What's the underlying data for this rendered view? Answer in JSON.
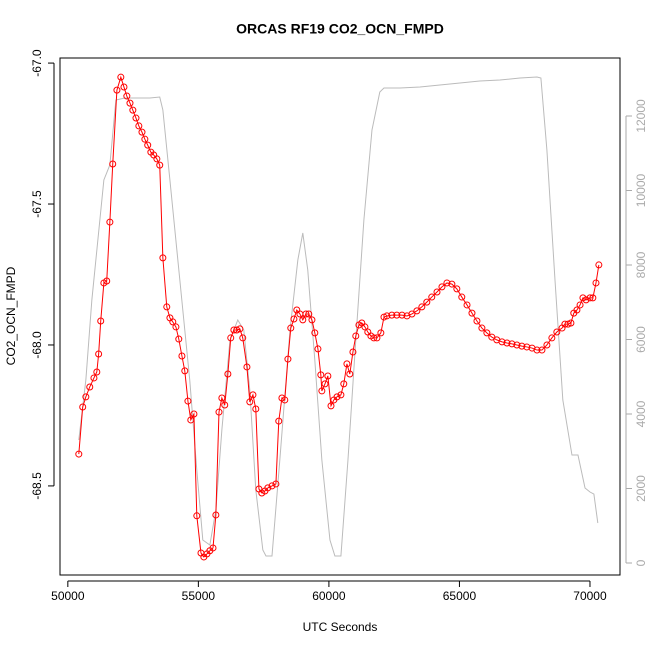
{
  "chart_data": {
    "type": "line",
    "title": "ORCAS RF19 CO2_OCN_FMPD",
    "xlabel": "UTC Seconds",
    "ylabel": "CO2_OCN_FMPD",
    "xlim": [
      49700,
      71150
    ],
    "xticks": [
      50000,
      55000,
      60000,
      65000,
      70000
    ],
    "ylim": [
      -68.816,
      -66.982
    ],
    "yticks": [
      {
        "value": -67,
        "label": "-67.0"
      },
      -67.5,
      {
        "value": -68,
        "label": "-68.0"
      },
      -68.5
    ],
    "y2lim": [
      -322,
      13557
    ],
    "y2ticks": [
      0,
      2000,
      4000,
      6000,
      8000,
      10000,
      12000
    ],
    "series": [
      {
        "color": "#bbbbbb",
        "marker": "none",
        "axis": "y2",
        "x": [
          50420,
          50690,
          50920,
          51150,
          51380,
          51610,
          51840,
          52180,
          53140,
          53520,
          53640,
          53910,
          54290,
          54670,
          54940,
          55170,
          55440,
          55670,
          55900,
          56210,
          56510,
          56740,
          56970,
          57200,
          57470,
          57590,
          57820,
          58120,
          58510,
          58810,
          59000,
          59190,
          59460,
          59730,
          60040,
          60230,
          60460,
          60730,
          61030,
          61340,
          61650,
          61950,
          62110,
          62720,
          63490,
          64250,
          65020,
          65780,
          66550,
          67320,
          67970,
          68120,
          68350,
          68660,
          68960,
          69310,
          69540,
          69810,
          70000,
          70150,
          70300
        ],
        "values": [
          3302,
          4913,
          7060,
          8671,
          10282,
          10685,
          12430,
          12483,
          12483,
          12510,
          12161,
          10282,
          7597,
          4913,
          2497,
          617,
          483,
          1423,
          3571,
          5987,
          6524,
          6255,
          4644,
          1960,
          349,
          188,
          188,
          2765,
          6255,
          8134,
          8859,
          7866,
          5450,
          2765,
          617,
          188,
          188,
          2765,
          5987,
          9208,
          11624,
          12644,
          12752,
          12752,
          12779,
          12832,
          12886,
          12940,
          12966,
          13020,
          13047,
          13020,
          11087,
          7597,
          4376,
          2899,
          2899,
          2013,
          1906,
          1852,
          1074
        ]
      },
      {
        "color": "#ff0000",
        "marker": "circle",
        "axis": "y",
        "x": [
          50420,
          50570,
          50690,
          50840,
          51000,
          51110,
          51180,
          51260,
          51380,
          51490,
          51610,
          51720,
          51880,
          52030,
          52150,
          52260,
          52380,
          52490,
          52610,
          52720,
          52840,
          52950,
          53060,
          53180,
          53290,
          53410,
          53520,
          53640,
          53790,
          53910,
          54020,
          54140,
          54250,
          54370,
          54480,
          54600,
          54710,
          54830,
          54940,
          55100,
          55210,
          55330,
          55440,
          55560,
          55670,
          55790,
          55900,
          56010,
          56130,
          56240,
          56360,
          56470,
          56590,
          56700,
          56860,
          56970,
          57090,
          57200,
          57320,
          57430,
          57550,
          57660,
          57820,
          57970,
          58080,
          58200,
          58310,
          58430,
          58540,
          58660,
          58770,
          58890,
          59000,
          59120,
          59230,
          59350,
          59460,
          59580,
          59690,
          59730,
          59850,
          59960,
          60080,
          60190,
          60310,
          60460,
          60570,
          60690,
          60800,
          60920,
          61030,
          61150,
          61260,
          61380,
          61490,
          61610,
          61720,
          61840,
          61990,
          62110,
          62220,
          62410,
          62600,
          62800,
          62990,
          63180,
          63370,
          63560,
          63750,
          63940,
          64140,
          64330,
          64520,
          64710,
          64900,
          65090,
          65290,
          65480,
          65670,
          65860,
          66050,
          66240,
          66430,
          66630,
          66820,
          67010,
          67200,
          67390,
          67580,
          67780,
          67970,
          68160,
          68350,
          68540,
          68730,
          68930,
          69040,
          69160,
          69270,
          69380,
          69500,
          69620,
          69730,
          69850,
          70000,
          70110,
          70230,
          70340
        ],
        "values": [
          -68.387,
          -68.22,
          -68.184,
          -68.149,
          -68.117,
          -68.096,
          -68.032,
          -67.915,
          -67.78,
          -67.773,
          -67.564,
          -67.358,
          -67.096,
          -67.05,
          -67.085,
          -67.117,
          -67.142,
          -67.167,
          -67.195,
          -67.223,
          -67.245,
          -67.27,
          -67.291,
          -67.316,
          -67.326,
          -67.34,
          -67.362,
          -67.691,
          -67.865,
          -67.904,
          -67.918,
          -67.936,
          -67.979,
          -68.039,
          -68.092,
          -68.199,
          -68.266,
          -68.245,
          -68.606,
          -68.738,
          -68.752,
          -68.741,
          -68.73,
          -68.72,
          -68.603,
          -68.238,
          -68.188,
          -68.213,
          -68.103,
          -67.975,
          -67.947,
          -67.947,
          -67.943,
          -67.975,
          -68.078,
          -68.202,
          -68.177,
          -68.227,
          -68.511,
          -68.525,
          -68.518,
          -68.507,
          -68.5,
          -68.493,
          -68.27,
          -68.188,
          -68.195,
          -68.05,
          -67.94,
          -67.908,
          -67.876,
          -67.89,
          -67.911,
          -67.89,
          -67.89,
          -67.911,
          -67.957,
          -68.014,
          -68.106,
          -68.163,
          -68.138,
          -68.11,
          -68.216,
          -68.195,
          -68.184,
          -68.177,
          -68.138,
          -68.067,
          -68.103,
          -68.025,
          -67.968,
          -67.929,
          -67.922,
          -67.936,
          -67.954,
          -67.968,
          -67.975,
          -67.975,
          -67.957,
          -67.901,
          -67.897,
          -67.894,
          -67.894,
          -67.894,
          -67.897,
          -67.89,
          -67.879,
          -67.865,
          -67.848,
          -67.83,
          -67.812,
          -67.794,
          -67.78,
          -67.784,
          -67.801,
          -67.83,
          -67.858,
          -67.887,
          -67.915,
          -67.94,
          -67.957,
          -67.972,
          -67.982,
          -67.989,
          -67.993,
          -67.996,
          -68.0,
          -68.004,
          -68.007,
          -68.011,
          -68.018,
          -68.018,
          -68.0,
          -67.975,
          -67.954,
          -67.94,
          -67.926,
          -67.926,
          -67.922,
          -67.887,
          -67.876,
          -67.858,
          -67.833,
          -67.84,
          -67.833,
          -67.833,
          -67.78,
          -67.716
        ]
      }
    ]
  }
}
